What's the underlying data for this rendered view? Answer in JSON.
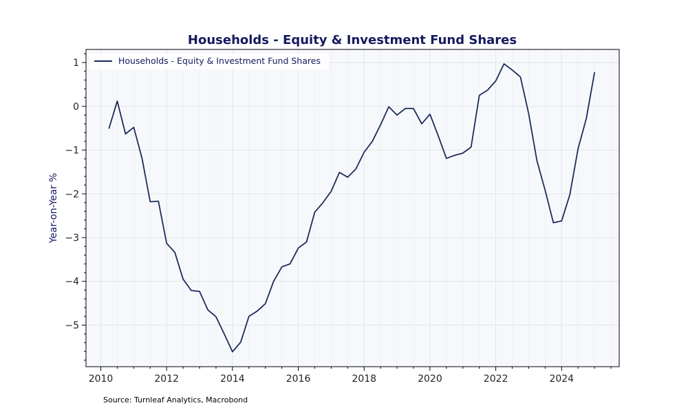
{
  "chart_data": {
    "type": "line",
    "title": "Households - Equity & Investment Fund Shares",
    "xlabel": "",
    "ylabel": "Year-on-Year %",
    "xlim": [
      2009.55,
      2025.75
    ],
    "ylim": [
      -5.95,
      1.3
    ],
    "x_ticks": [
      2010,
      2012,
      2014,
      2016,
      2018,
      2020,
      2022,
      2024
    ],
    "y_ticks": [
      1,
      0,
      -1,
      -2,
      -3,
      -4,
      -5
    ],
    "y_tick_labels": [
      "1",
      "0",
      "−1",
      "−2",
      "−3",
      "−4",
      "−5"
    ],
    "grid": true,
    "legend_position": "top-left",
    "line_color": "#1c2a5a",
    "plot_background": "#f6f8fb",
    "series": [
      {
        "name": "Households - Equity & Investment Fund Shares",
        "x": [
          2010.25,
          2010.5,
          2010.75,
          2011.0,
          2011.25,
          2011.5,
          2011.75,
          2012.0,
          2012.25,
          2012.5,
          2012.75,
          2013.0,
          2013.25,
          2013.5,
          2013.75,
          2014.0,
          2014.25,
          2014.5,
          2014.75,
          2015.0,
          2015.25,
          2015.5,
          2015.75,
          2016.0,
          2016.25,
          2016.5,
          2016.75,
          2017.0,
          2017.25,
          2017.5,
          2017.75,
          2018.0,
          2018.25,
          2018.5,
          2018.75,
          2019.0,
          2019.25,
          2019.5,
          2019.75,
          2020.0,
          2020.25,
          2020.5,
          2020.75,
          2021.0,
          2021.25,
          2021.5,
          2021.75,
          2022.0,
          2022.25,
          2022.5,
          2022.75,
          2023.0,
          2023.25,
          2023.5,
          2023.75,
          2024.0,
          2024.25,
          2024.5,
          2024.75,
          2025.0
        ],
        "values": [
          -0.5,
          0.12,
          -0.63,
          -0.48,
          -1.18,
          -2.18,
          -2.17,
          -3.13,
          -3.34,
          -3.95,
          -4.21,
          -4.23,
          -4.65,
          -4.81,
          -5.2,
          -5.61,
          -5.39,
          -4.8,
          -4.68,
          -4.51,
          -4.0,
          -3.67,
          -3.6,
          -3.24,
          -3.1,
          -2.42,
          -2.2,
          -1.94,
          -1.51,
          -1.62,
          -1.43,
          -1.05,
          -0.8,
          -0.42,
          -0.01,
          -0.2,
          -0.05,
          -0.05,
          -0.4,
          -0.18,
          -0.67,
          -1.19,
          -1.12,
          -1.07,
          -0.93,
          0.25,
          0.37,
          0.58,
          0.97,
          0.83,
          0.67,
          -0.17,
          -1.24,
          -1.92,
          -2.66,
          -2.62,
          -2.02,
          -0.97,
          -0.28,
          0.77
        ]
      }
    ]
  },
  "footer": {
    "source": "Source: Turnleaf Analytics, Macrobond"
  }
}
